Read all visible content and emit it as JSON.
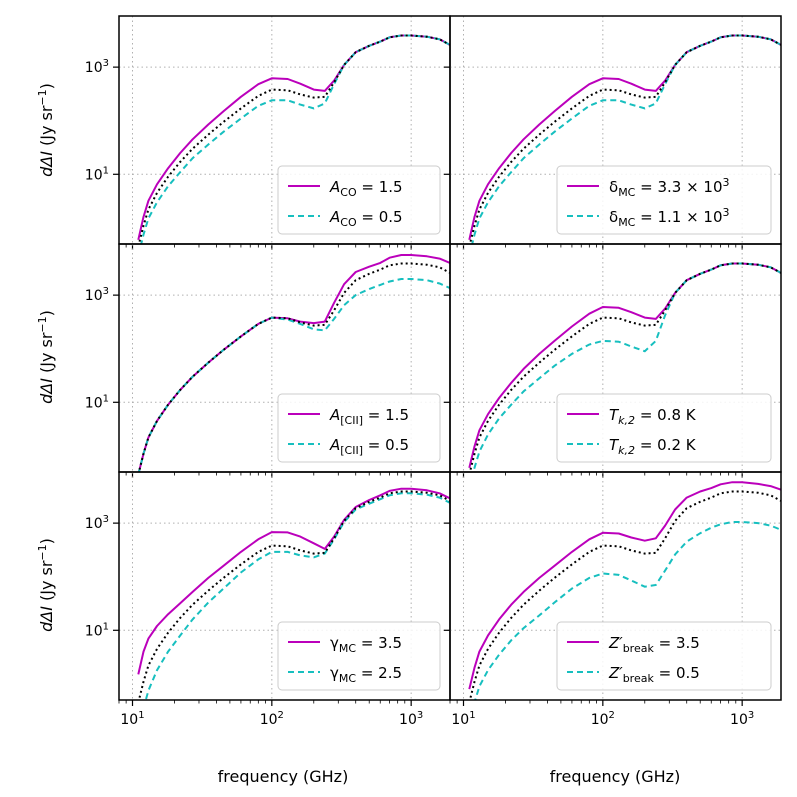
{
  "figure": {
    "ylabel": "dΔI (Jy sr⁻¹)",
    "xlabel": "frequency (GHz)"
  },
  "colors": {
    "high": "#bb00bb",
    "low": "#17bfbf",
    "fiducial": "#000000",
    "grid": "#b0b0b0"
  },
  "chart_data": {
    "type": "line",
    "x_scale": "log",
    "y_scale": "log",
    "xlim": [
      8,
      1900
    ],
    "ylim": [
      0.5,
      9000
    ],
    "x_ticks": [
      {
        "value": 10,
        "label": "10¹"
      },
      {
        "value": 100,
        "label": "10²"
      },
      {
        "value": 1000,
        "label": "10³"
      }
    ],
    "y_ticks": [
      {
        "value": 10,
        "label": "10¹"
      },
      {
        "value": 1000,
        "label": "10³"
      }
    ],
    "grid": true,
    "legend_placement": "lower-right",
    "x": [
      11,
      12,
      13,
      15,
      18,
      22,
      27,
      35,
      45,
      60,
      80,
      100,
      130,
      160,
      200,
      240,
      280,
      330,
      400,
      500,
      600,
      700,
      850,
      1000,
      1300,
      1600,
      1900
    ],
    "fiducial": [
      0.45,
      1.1,
      2.2,
      4.5,
      9,
      17,
      30,
      55,
      95,
      170,
      290,
      380,
      370,
      310,
      270,
      280,
      520,
      1100,
      1900,
      2500,
      3000,
      3600,
      3900,
      3900,
      3700,
      3300,
      2600
    ],
    "panels": [
      {
        "id": "A_CO",
        "legend": [
          {
            "var": "A",
            "sub": "CO",
            "value": " = 1.5"
          },
          {
            "var": "A",
            "sub": "CO",
            "value": " = 0.5"
          }
        ],
        "high": [
          0.6,
          1.6,
          3.2,
          6.5,
          13,
          25,
          45,
          85,
          150,
          280,
          480,
          620,
          600,
          490,
          380,
          360,
          560,
          1100,
          1900,
          2500,
          3000,
          3600,
          3900,
          3900,
          3700,
          3300,
          2600
        ],
        "low": [
          0.3,
          0.75,
          1.5,
          3,
          6,
          11,
          20,
          36,
          62,
          110,
          190,
          240,
          240,
          200,
          170,
          210,
          480,
          1100,
          1900,
          2500,
          3000,
          3600,
          3900,
          3900,
          3700,
          3300,
          2600
        ]
      },
      {
        "id": "delta_MC",
        "legend": [
          {
            "var": "δ",
            "sub": "MC",
            "value": " = 3.3 × 10",
            "sup": "3"
          },
          {
            "var": "δ",
            "sub": "MC",
            "value": " = 1.1 × 10",
            "sup": "3"
          }
        ],
        "high": [
          0.6,
          1.6,
          3.2,
          6.5,
          13,
          25,
          45,
          85,
          150,
          280,
          480,
          620,
          600,
          490,
          380,
          360,
          560,
          1100,
          1900,
          2500,
          3000,
          3600,
          3900,
          3900,
          3700,
          3300,
          2600
        ],
        "low": [
          0.3,
          0.75,
          1.5,
          3,
          6,
          11,
          20,
          36,
          62,
          110,
          190,
          240,
          240,
          200,
          170,
          210,
          480,
          1100,
          1900,
          2500,
          3000,
          3600,
          3900,
          3900,
          3700,
          3300,
          2600
        ]
      },
      {
        "id": "A_CII",
        "legend": [
          {
            "var": "A",
            "sub": "[CII]",
            "value": " = 1.5"
          },
          {
            "var": "A",
            "sub": "[CII]",
            "value": " = 0.5"
          }
        ],
        "high": [
          0.45,
          1.1,
          2.2,
          4.5,
          9,
          17,
          30,
          55,
          95,
          170,
          290,
          380,
          370,
          320,
          300,
          320,
          720,
          1600,
          2700,
          3400,
          4000,
          5000,
          5600,
          5600,
          5300,
          4800,
          4000
        ],
        "low": [
          0.45,
          1.1,
          2.2,
          4.5,
          9,
          17,
          30,
          55,
          95,
          170,
          290,
          380,
          350,
          290,
          230,
          220,
          360,
          650,
          1000,
          1300,
          1550,
          1800,
          2000,
          2000,
          1900,
          1650,
          1350
        ]
      },
      {
        "id": "T_k2",
        "legend": [
          {
            "var": "T",
            "sub": "k,2",
            "value": " = 0.8 K"
          },
          {
            "var": "T",
            "sub": "k,2",
            "value": " = 0.2 K"
          }
        ],
        "high": [
          0.6,
          1.5,
          3,
          6,
          12,
          23,
          42,
          80,
          140,
          260,
          450,
          600,
          580,
          480,
          380,
          360,
          560,
          1100,
          1900,
          2500,
          3000,
          3600,
          3900,
          3900,
          3700,
          3300,
          2600
        ],
        "low": [
          0.25,
          0.6,
          1.2,
          2.5,
          5,
          9,
          16,
          28,
          48,
          80,
          120,
          140,
          135,
          110,
          90,
          140,
          420,
          1100,
          1900,
          2500,
          3000,
          3600,
          3900,
          3900,
          3700,
          3300,
          2600
        ]
      },
      {
        "id": "gamma_MC",
        "legend": [
          {
            "var": "γ",
            "sub": "MC",
            "value": " = 3.5"
          },
          {
            "var": "γ",
            "sub": "MC",
            "value": " = 2.5"
          }
        ],
        "high": [
          1.5,
          4,
          7,
          12,
          20,
          32,
          52,
          95,
          160,
          290,
          500,
          680,
          670,
          560,
          420,
          330,
          560,
          1150,
          2000,
          2700,
          3300,
          4000,
          4400,
          4400,
          4100,
          3600,
          2900
        ],
        "low": [
          0.15,
          0.35,
          0.75,
          1.8,
          4,
          8,
          16,
          33,
          60,
          120,
          210,
          290,
          290,
          250,
          230,
          270,
          500,
          1050,
          1800,
          2300,
          2800,
          3300,
          3600,
          3600,
          3400,
          3000,
          2400
        ]
      },
      {
        "id": "Z_break",
        "legend": [
          {
            "var": "Z′",
            "sub": "break",
            "value": " = 3.5"
          },
          {
            "var": "Z′",
            "sub": "break",
            "value": " = 0.5"
          }
        ],
        "high": [
          0.8,
          2,
          4,
          8,
          16,
          30,
          52,
          95,
          160,
          290,
          500,
          660,
          640,
          540,
          470,
          520,
          900,
          1800,
          3000,
          3900,
          4500,
          5300,
          5800,
          5800,
          5400,
          4900,
          4200
        ],
        "low": [
          0.18,
          0.45,
          0.9,
          1.8,
          3.5,
          6.5,
          11,
          19,
          33,
          60,
          95,
          115,
          108,
          85,
          65,
          70,
          130,
          260,
          450,
          650,
          820,
          950,
          1050,
          1050,
          1000,
          900,
          750
        ]
      }
    ]
  }
}
